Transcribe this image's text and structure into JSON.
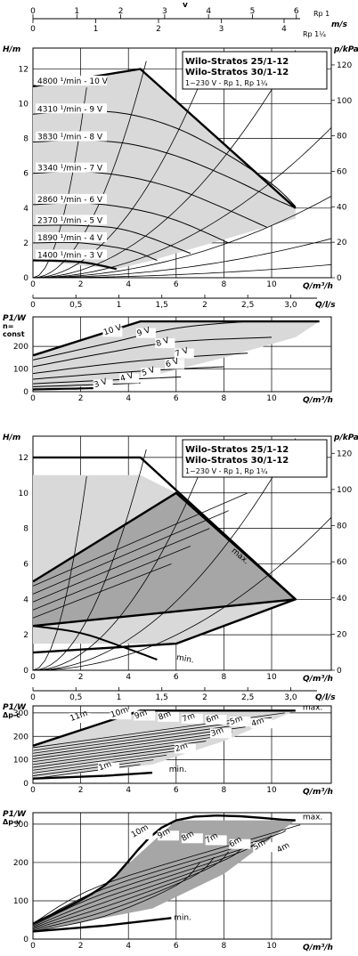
{
  "top_axis": {
    "v_label": "v",
    "unit": "m/s",
    "rp1_label": "Rp 1",
    "rp114_label": "Rp 1¼",
    "rp1_ticks": [
      "0",
      "1",
      "2",
      "3",
      "4",
      "5",
      "6"
    ],
    "rp114_ticks": [
      "0",
      "1",
      "2",
      "3",
      "4"
    ]
  },
  "bottom_axis": {
    "unit": "Q/l/s",
    "ticks": [
      "0",
      "0,5",
      "1",
      "1,5",
      "2",
      "2,5",
      "3,0"
    ]
  },
  "legend_box": {
    "line1": "Wilo-Stratos 25/1-12",
    "line2": "Wilo-Stratos 30/1-12",
    "line3": "1~230 V - Rp 1, Rp 1¼"
  },
  "colors": {
    "fill_light": "#d9d9d9",
    "fill_dark": "#a6a6a6",
    "line": "#000000"
  },
  "chart_data": [
    {
      "type": "line",
      "panel": "H-Q constant speed",
      "xlabel": "Q/m³/h",
      "ylabel": "H/m",
      "y2label": "p/kPa",
      "xlim": [
        0,
        12.5
      ],
      "ylim": [
        0,
        13.2
      ],
      "y2lim": [
        0,
        129.5
      ],
      "xticks": [
        0,
        2,
        4,
        6,
        8,
        10
      ],
      "yticks": [
        0,
        2,
        4,
        6,
        8,
        10,
        12
      ],
      "y2ticks": [
        0,
        20,
        40,
        60,
        80,
        100,
        120
      ],
      "series": [
        {
          "name": "4800 1/min - 10 V",
          "x": [
            0,
            4.5,
            11
          ],
          "y": [
            11,
            12,
            4
          ]
        },
        {
          "name": "4310 1/min - 9 V",
          "x": [
            0,
            2,
            4,
            6,
            8,
            10,
            11
          ],
          "y": [
            9.4,
            9.6,
            9.4,
            8.6,
            7.2,
            5.4,
            4.1
          ]
        },
        {
          "name": "3830 1/min - 8 V",
          "x": [
            0,
            2,
            4,
            6,
            8,
            10,
            11
          ],
          "y": [
            7.8,
            7.9,
            7.7,
            7.0,
            5.9,
            4.6,
            4.0
          ]
        },
        {
          "name": "3340 1/min - 7 V",
          "x": [
            0,
            2,
            4,
            6,
            8,
            9.8
          ],
          "y": [
            6.0,
            6.1,
            5.8,
            5.1,
            4.0,
            2.9
          ]
        },
        {
          "name": "2860 1/min - 6 V",
          "x": [
            0,
            2,
            4,
            6,
            8.2
          ],
          "y": [
            4.2,
            4.3,
            4.0,
            3.3,
            2.0
          ]
        },
        {
          "name": "2370 1/min - 5 V",
          "x": [
            0,
            2,
            4,
            6.6
          ],
          "y": [
            3.0,
            3.0,
            2.7,
            1.4
          ]
        },
        {
          "name": "1890 1/min - 4 V",
          "x": [
            0,
            2,
            4,
            5.2
          ],
          "y": [
            2.0,
            2.0,
            1.6,
            1.0
          ]
        },
        {
          "name": "1400 1/min - 3 V",
          "x": [
            0,
            2,
            3.5
          ],
          "y": [
            1.0,
            0.9,
            0.5
          ]
        }
      ],
      "labels": [
        "4800 ¹/min - 10 V",
        "4310 ¹/min - 9 V",
        "3830 ¹/min - 8 V",
        "3340 ¹/min - 7 V",
        "2860 ¹/min - 6 V",
        "2370 ¹/min - 5 V",
        "1890 ¹/min - 4 V",
        "1400 ¹/min - 3 V"
      ]
    },
    {
      "type": "line",
      "panel": "P1-Q constant speed",
      "xlabel": "Q/m³/h",
      "ylabel": "P1/W",
      "ylabel_sub": "n=",
      "ylabel_sub2": "const",
      "xlim": [
        0,
        12.5
      ],
      "ylim": [
        0,
        330
      ],
      "xticks": [
        0,
        2,
        4,
        6,
        8,
        10
      ],
      "yticks": [
        0,
        100,
        200
      ],
      "series": [
        {
          "name": "10 V",
          "x": [
            0,
            4.5,
            12
          ],
          "y": [
            160,
            310,
            310
          ]
        },
        {
          "name": "9 V",
          "x": [
            0,
            3,
            6,
            9
          ],
          "y": [
            140,
            210,
            280,
            310
          ]
        },
        {
          "name": "8 V",
          "x": [
            0,
            3,
            6,
            10
          ],
          "y": [
            110,
            170,
            220,
            240
          ]
        },
        {
          "name": "7 V",
          "x": [
            0,
            3,
            6,
            9
          ],
          "y": [
            80,
            120,
            150,
            170
          ]
        },
        {
          "name": "6 V",
          "x": [
            0,
            3,
            6,
            8
          ],
          "y": [
            55,
            80,
            100,
            110
          ]
        },
        {
          "name": "5 V",
          "x": [
            0,
            3,
            6.2
          ],
          "y": [
            35,
            50,
            65
          ]
        },
        {
          "name": "4 V",
          "x": [
            0,
            3,
            4.5
          ],
          "y": [
            22,
            32,
            38
          ]
        },
        {
          "name": "3 V",
          "x": [
            0,
            2,
            3
          ],
          "y": [
            10,
            14,
            17
          ]
        }
      ],
      "labels": [
        "10 V",
        "9 V",
        "8 V",
        "7 V",
        "6 V",
        "5 V",
        "4 V",
        "3 V"
      ]
    },
    {
      "type": "line",
      "panel": "H-Q control ranges",
      "xlabel": "Q/m³/h",
      "ylabel": "H/m",
      "y2label": "p/kPa",
      "xlim": [
        0,
        12.5
      ],
      "ylim": [
        0,
        13.2
      ],
      "y2lim": [
        0,
        129.5
      ],
      "xticks": [
        0,
        2,
        4,
        6,
        8,
        10
      ],
      "yticks": [
        0,
        2,
        4,
        6,
        8,
        10,
        12
      ],
      "y2ticks": [
        0,
        20,
        40,
        60,
        80,
        100,
        120
      ],
      "labels": [
        "max.",
        "min."
      ]
    },
    {
      "type": "line",
      "panel": "P1-Q Δp-c",
      "xlabel": "Q/m³/h",
      "ylabel": "P1/W",
      "ylabel_sub": "Δp-c",
      "xlim": [
        0,
        12.5
      ],
      "ylim": [
        0,
        330
      ],
      "xticks": [
        0,
        2,
        4,
        6,
        8,
        10
      ],
      "yticks": [
        0,
        100,
        200,
        300
      ],
      "labels": [
        "11m",
        "10m",
        "9m",
        "8m",
        "7m",
        "6m",
        "5m",
        "4m",
        "3m",
        "2m",
        "1m",
        "max.",
        "min."
      ]
    },
    {
      "type": "line",
      "panel": "P1-Q Δp-v",
      "xlabel": "Q/m³/h",
      "ylabel": "P1/W",
      "ylabel_sub": "Δp-v",
      "xlim": [
        0,
        12.5
      ],
      "ylim": [
        0,
        330
      ],
      "xticks": [
        0,
        2,
        4,
        6,
        8,
        10
      ],
      "yticks": [
        0,
        100,
        200,
        300
      ],
      "labels": [
        "10m",
        "9m",
        "8m",
        "7m",
        "6m",
        "5m",
        "4m",
        "max.",
        "min."
      ]
    }
  ]
}
